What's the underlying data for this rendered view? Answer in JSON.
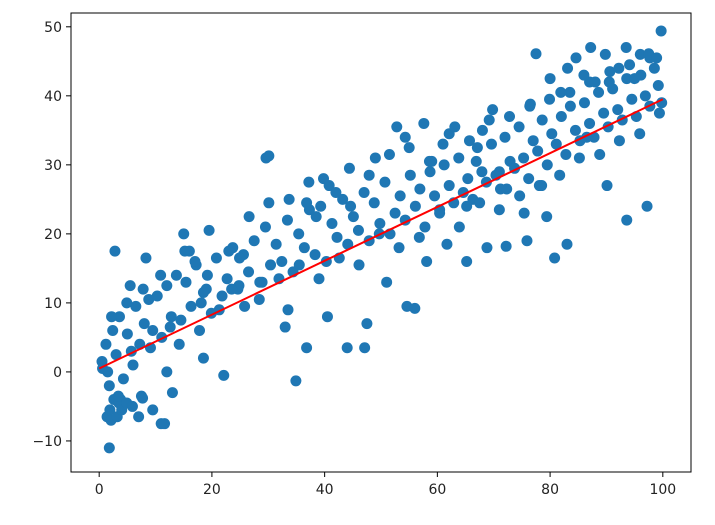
{
  "chart_data": {
    "type": "scatter",
    "title": "",
    "xlabel": "",
    "ylabel": "",
    "xlim": [
      -5,
      105
    ],
    "ylim": [
      -14.5,
      52
    ],
    "xticks": [
      0,
      20,
      40,
      60,
      80,
      100
    ],
    "yticks": [
      -10,
      0,
      10,
      20,
      30,
      40,
      50
    ],
    "grid": false,
    "legend": "none",
    "colors": {
      "points": "#1f77b4",
      "fit_line": "#ff0000",
      "axes": "#000000"
    },
    "series": [
      {
        "kind": "scatter",
        "x": [
          0.5,
          1.2,
          1.8,
          2.4,
          3.0,
          3.6,
          4.3,
          5.0,
          5.7,
          6.5,
          7.2,
          8.0,
          8.8,
          9.5,
          10.3,
          11.1,
          12.0,
          12.8,
          13.7,
          14.5,
          15.4,
          16.3,
          17.2,
          18.1,
          19.0,
          19.9,
          20.8,
          21.8,
          22.7,
          23.7,
          24.6,
          25.6,
          26.5,
          27.5,
          28.5,
          29.5,
          30.4,
          31.4,
          32.4,
          33.4,
          34.4,
          35.4,
          36.4,
          37.3,
          38.3,
          39.3,
          40.3,
          41.3,
          42.2,
          43.2,
          44.1,
          45.1,
          46.0,
          47.0,
          47.9,
          48.8,
          49.8,
          50.7,
          51.6,
          52.5,
          53.4,
          54.3,
          55.2,
          56.1,
          56.9,
          57.8,
          58.7,
          59.5,
          60.4,
          61.2,
          62.1,
          62.9,
          63.8,
          64.6,
          65.4,
          66.3,
          67.1,
          67.9,
          68.7,
          69.6,
          70.4,
          71.2,
          72.0,
          72.9,
          73.7,
          74.5,
          75.3,
          76.2,
          77.0,
          77.8,
          78.6,
          79.5,
          80.3,
          81.1,
          82.0,
          82.8,
          83.6,
          84.5,
          85.3,
          86.1,
          87.0,
          87.8,
          88.6,
          89.5,
          90.3,
          91.1,
          92.0,
          92.8,
          93.6,
          94.5,
          95.3,
          96.1,
          96.9,
          97.7,
          98.5,
          99.2,
          99.8,
          1.5,
          2.2,
          3.8,
          4.9,
          6.0,
          7.8,
          9.1,
          10.9,
          12.6,
          14.2,
          16.0,
          17.8,
          19.5,
          21.3,
          23.0,
          24.8,
          26.6,
          28.4,
          30.1,
          31.9,
          33.7,
          35.5,
          37.2,
          39.0,
          40.8,
          42.6,
          44.4,
          46.1,
          47.9,
          49.7,
          51.5,
          53.2,
          55.0,
          56.8,
          58.6,
          60.4,
          62.1,
          63.9,
          65.7,
          67.5,
          69.2,
          71.0,
          72.8,
          74.6,
          76.4,
          78.1,
          79.9,
          81.7,
          83.5,
          85.2,
          87.0,
          88.8,
          90.6,
          92.3,
          94.1,
          95.9,
          97.7,
          99.4,
          2.8,
          5.5,
          8.3,
          11.6,
          15.0,
          18.5,
          22.1,
          25.8,
          29.6,
          33.0,
          36.8,
          40.5,
          44.0,
          47.5,
          51.0,
          54.6,
          58.1,
          61.7,
          65.2,
          68.8,
          72.3,
          75.9,
          79.4,
          83.0,
          86.5,
          90.1,
          93.6,
          97.2,
          0.6,
          1.4,
          1.8,
          1.9,
          2.1,
          2.6,
          3.2,
          3.5,
          3.4,
          4.0,
          4.9,
          5.9,
          7.0,
          7.5,
          7.7,
          9.5,
          11.0,
          12.0,
          13.0,
          15.2,
          17.0,
          18.5,
          19.2,
          23.5,
          24.9,
          28.9,
          30.1,
          33.5,
          34.9,
          36.8,
          38.5,
          39.8,
          42.0,
          44.6,
          47.1,
          49.0,
          52.8,
          54.3,
          56.0,
          57.6,
          59.0,
          61.0,
          63.1,
          65.2,
          66.9,
          68.0,
          69.8,
          71.0,
          72.2,
          75.4,
          76.5,
          77.5,
          78.5,
          80.0,
          80.8,
          81.9,
          83.1,
          84.6,
          86.0,
          87.2,
          88.0,
          89.8,
          90.5,
          92.2,
          93.5,
          95.0,
          96.0,
          97.5,
          98.9,
          99.7
        ],
        "y": [
          1.5,
          4.0,
          -2.0,
          6.0,
          2.5,
          8.0,
          -1.0,
          5.5,
          3.0,
          9.5,
          4.0,
          7.0,
          10.5,
          6.0,
          11.0,
          5.0,
          12.5,
          8.0,
          14.0,
          7.5,
          13.0,
          9.5,
          15.5,
          10.0,
          12.0,
          8.5,
          16.5,
          11.0,
          13.5,
          18.0,
          12.0,
          17.0,
          14.5,
          19.0,
          13.0,
          21.0,
          15.5,
          18.5,
          16.0,
          22.0,
          14.5,
          20.0,
          18.0,
          23.5,
          17.0,
          24.0,
          16.0,
          21.5,
          19.5,
          25.0,
          18.5,
          22.5,
          20.5,
          26.0,
          19.0,
          24.5,
          21.5,
          27.5,
          20.0,
          23.0,
          25.5,
          22.0,
          28.5,
          24.0,
          26.5,
          21.0,
          29.0,
          25.5,
          23.5,
          30.0,
          27.0,
          24.5,
          31.0,
          26.0,
          28.0,
          25.0,
          32.5,
          29.0,
          27.5,
          33.0,
          28.5,
          26.5,
          34.0,
          30.5,
          29.5,
          35.5,
          31.0,
          28.0,
          33.5,
          32.0,
          36.5,
          30.0,
          34.5,
          33.0,
          37.0,
          31.5,
          38.5,
          35.0,
          33.5,
          39.0,
          36.0,
          34.0,
          40.5,
          37.5,
          35.5,
          41.0,
          38.0,
          36.5,
          42.5,
          39.5,
          37.0,
          43.0,
          40.0,
          38.5,
          44.0,
          41.5,
          39.0,
          0.0,
          8.0,
          -4.0,
          10.0,
          1.0,
          12.0,
          3.5,
          14.0,
          6.5,
          4.0,
          17.5,
          6.0,
          20.5,
          9.0,
          17.5,
          12.5,
          22.5,
          10.5,
          24.5,
          13.5,
          25.0,
          15.5,
          27.5,
          13.5,
          27.0,
          16.5,
          29.5,
          15.5,
          28.5,
          20.0,
          31.5,
          18.0,
          32.5,
          19.5,
          30.5,
          23.0,
          34.5,
          21.0,
          33.5,
          24.5,
          36.5,
          23.5,
          37.0,
          25.5,
          38.5,
          27.0,
          39.5,
          28.5,
          40.5,
          31.0,
          42.0,
          31.5,
          43.5,
          33.5,
          44.5,
          34.5,
          45.5,
          37.5,
          17.5,
          12.5,
          16.5,
          -7.5,
          20.0,
          2.0,
          -0.5,
          9.5,
          31.0,
          6.5,
          3.5,
          8.0,
          3.5,
          7.0,
          13.0,
          9.5,
          16.0,
          18.5,
          24.0,
          18.0,
          26.5,
          19.0,
          22.5,
          18.5,
          34.0,
          27.0,
          22.0,
          24.0,
          0.5,
          -6.5,
          -11.0,
          -5.5,
          -7.0,
          -4.0,
          -6.5,
          -4.5,
          -3.5,
          -5.5,
          -4.5,
          -5.0,
          -6.5,
          -3.5,
          -3.8,
          -5.5,
          -7.5,
          0.0,
          -3.0,
          17.5,
          16.0,
          11.5,
          14.0,
          12.0,
          16.5,
          13.0,
          31.3,
          9.0,
          -1.3,
          24.5,
          22.5,
          28.0,
          26.0,
          24.0,
          3.5,
          31.0,
          35.5,
          34.0,
          9.2,
          36.0,
          30.5,
          33.0,
          35.5,
          16.0,
          30.5,
          35.0,
          38.0,
          29.0,
          18.2,
          23.0,
          38.8,
          46.1,
          27.0,
          42.5,
          16.5,
          40.5,
          44.0,
          45.5,
          43.0,
          47.0,
          42.0,
          46.0,
          42.0,
          44.0,
          47.0,
          42.5,
          46.0,
          46.1,
          45.5,
          49.4
        ]
      },
      {
        "kind": "line",
        "name": "",
        "x": [
          0,
          100
        ],
        "y": [
          0.5,
          39.5
        ]
      }
    ]
  }
}
